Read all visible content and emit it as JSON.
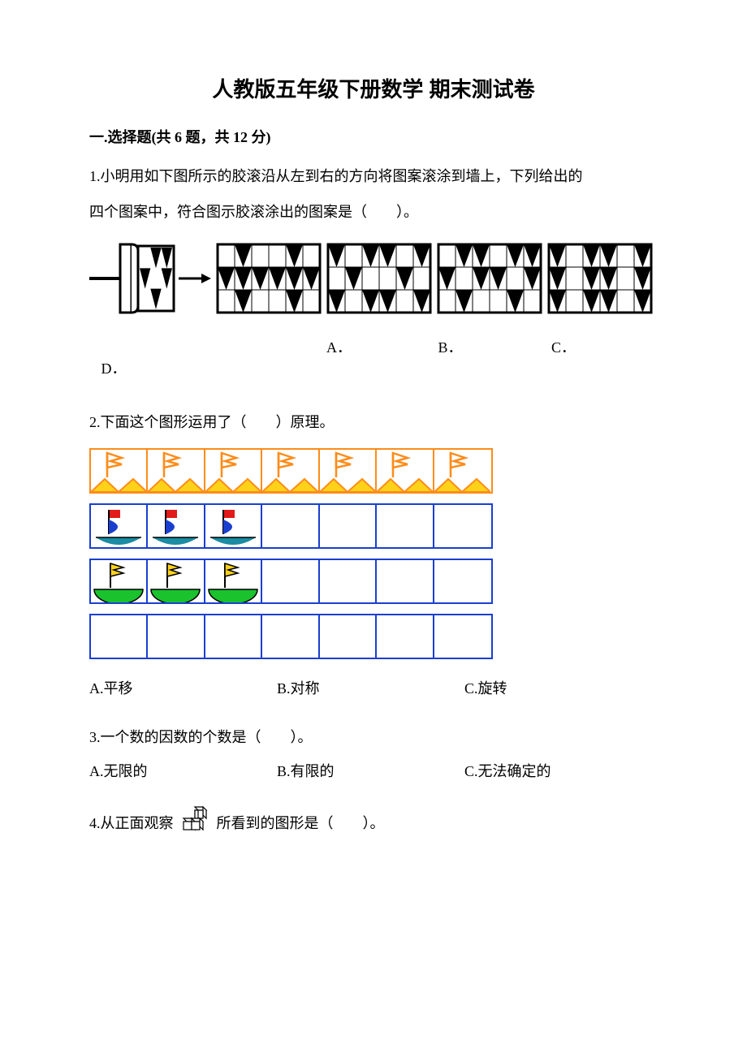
{
  "doc": {
    "title": "人教版五年级下册数学 期末测试卷",
    "section1_head": "一.选择题(共 6 题，共 12 分)",
    "q1": {
      "text1": "1.小明用如下图所示的胶滚沿从左到右的方向将图案滚涂到墙上，下列给出的",
      "text2": "四个图案中，符合图示胶滚涂出的图案是（　　）。",
      "labels": {
        "a": "A．",
        "b": "B．",
        "c": "C．",
        "d": "D．"
      }
    },
    "q2": {
      "text": "2.下面这个图形运用了（　　）原理。",
      "a": "A.平移",
      "b": "B.对称",
      "c": "C.旋转"
    },
    "q3": {
      "text": "3.一个数的因数的个数是（　　）。",
      "a": "A.无限的",
      "b": "B.有限的",
      "c": "C.无法确定的"
    },
    "q4": {
      "prefix": "4.从正面观察",
      "suffix": "所看到的图形是（　　）。"
    }
  },
  "style": {
    "black": "#000000",
    "white": "#ffffff",
    "orange": "#ff8c1a",
    "yellow": "#ffd21a",
    "red": "#e21a1a",
    "blue": "#1a3fcf",
    "teal": "#1a8ca3",
    "green": "#1ac22e",
    "grid_border": "#1a3fcf",
    "row1_cells": 7,
    "row2_cells": 7,
    "row3_cells": 7,
    "row4_cells": 7
  },
  "q1_panels": {
    "roller_rows": [
      [
        0,
        1,
        1
      ],
      [
        1,
        0,
        1
      ],
      [
        0,
        1,
        0
      ]
    ],
    "panel_rows": 3,
    "panel_cols": 6,
    "A": [
      [
        0,
        1,
        0,
        0,
        1,
        0
      ],
      [
        1,
        1,
        1,
        1,
        1,
        1
      ],
      [
        0,
        1,
        0,
        0,
        1,
        0
      ]
    ],
    "B": [
      [
        1,
        0,
        1,
        1,
        0,
        1
      ],
      [
        0,
        1,
        0,
        0,
        1,
        0
      ],
      [
        1,
        0,
        1,
        1,
        0,
        1
      ]
    ],
    "C": [
      [
        0,
        1,
        1,
        0,
        1,
        1
      ],
      [
        1,
        0,
        1,
        1,
        0,
        1
      ],
      [
        0,
        1,
        0,
        0,
        1,
        0
      ]
    ],
    "D": [
      [
        1,
        0,
        1,
        1,
        0,
        1
      ],
      [
        1,
        0,
        1,
        1,
        0,
        1
      ],
      [
        1,
        0,
        1,
        1,
        0,
        1
      ]
    ]
  }
}
